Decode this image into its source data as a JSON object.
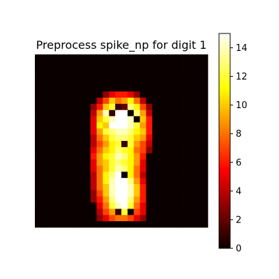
{
  "chart_data": {
    "type": "heatmap",
    "title": "Preprocess spike_np for digit 1",
    "colormap": "hot",
    "vmin": 0,
    "vmax": 15,
    "rows": 28,
    "cols": 28,
    "colorbar": {
      "ticks": [
        0,
        2,
        4,
        6,
        8,
        10,
        12,
        14
      ],
      "tick_labels": [
        "0",
        "2",
        "4",
        "6",
        "8",
        "10",
        "12",
        "14"
      ]
    },
    "grid": [
      [
        0,
        0,
        0,
        0,
        0,
        0,
        0,
        0,
        0,
        0,
        0,
        0,
        0,
        0,
        0,
        0,
        0,
        0,
        0,
        0,
        0,
        0,
        0,
        0,
        0,
        0,
        0,
        0
      ],
      [
        0,
        0,
        0,
        0,
        0,
        0,
        0,
        0,
        0,
        0,
        0,
        0,
        0,
        0,
        0,
        0,
        0,
        0,
        0,
        0,
        0,
        0,
        0,
        0,
        0,
        0,
        0,
        0
      ],
      [
        0,
        0,
        0,
        0,
        0,
        0,
        0,
        0,
        0,
        0,
        0,
        0,
        0,
        0,
        0,
        0,
        0,
        0,
        0,
        0,
        0,
        0,
        0,
        0,
        0,
        0,
        0,
        0
      ],
      [
        0,
        0,
        0,
        0,
        0,
        0,
        0,
        0,
        0,
        0,
        0,
        0,
        0,
        0,
        0,
        0,
        0,
        0,
        0,
        0,
        0,
        0,
        0,
        0,
        0,
        0,
        0,
        0
      ],
      [
        0,
        0,
        0,
        0,
        0,
        0,
        0,
        0,
        0,
        0,
        0,
        0,
        0,
        0,
        0,
        0,
        0,
        0,
        0,
        0,
        0,
        0,
        0,
        0,
        0,
        0,
        0,
        0
      ],
      [
        0,
        0,
        0,
        0,
        0,
        0,
        0,
        0,
        0,
        0,
        0,
        0,
        0,
        0,
        0,
        0,
        0,
        0,
        0,
        0,
        0,
        0,
        0,
        0,
        0,
        0,
        0,
        0
      ],
      [
        0,
        0,
        0,
        0,
        0,
        0,
        0,
        0,
        0,
        0,
        0,
        3,
        5,
        6,
        6,
        5,
        3,
        0,
        0,
        0,
        0,
        0,
        0,
        0,
        0,
        0,
        0,
        0
      ],
      [
        0,
        0,
        0,
        0,
        0,
        0,
        0,
        0,
        0,
        0,
        4,
        7,
        10,
        8,
        9,
        11,
        8,
        4,
        0,
        0,
        0,
        0,
        0,
        0,
        0,
        0,
        0,
        0
      ],
      [
        0,
        0,
        0,
        0,
        0,
        0,
        0,
        0,
        0,
        3,
        6,
        10,
        12,
        1,
        2,
        13,
        11,
        7,
        3,
        0,
        0,
        0,
        0,
        0,
        0,
        0,
        0,
        0
      ],
      [
        0,
        0,
        0,
        0,
        0,
        0,
        0,
        0,
        0,
        4,
        9,
        14,
        1,
        15,
        15,
        0,
        13,
        9,
        4,
        0,
        0,
        0,
        0,
        0,
        0,
        0,
        0,
        0
      ],
      [
        0,
        0,
        0,
        0,
        0,
        0,
        0,
        0,
        0,
        5,
        10,
        12,
        14,
        15,
        15,
        14,
        0,
        10,
        6,
        0,
        0,
        0,
        0,
        0,
        0,
        0,
        0,
        0
      ],
      [
        0,
        0,
        0,
        0,
        0,
        0,
        0,
        0,
        0,
        5,
        11,
        10,
        15,
        15,
        15,
        14,
        12,
        9,
        6,
        0,
        0,
        0,
        0,
        0,
        0,
        0,
        0,
        0
      ],
      [
        0,
        0,
        0,
        0,
        0,
        0,
        0,
        0,
        0,
        5,
        9,
        12,
        13,
        14,
        14,
        13,
        11,
        10,
        6,
        0,
        0,
        0,
        0,
        0,
        0,
        0,
        0,
        0
      ],
      [
        0,
        0,
        0,
        0,
        0,
        0,
        0,
        0,
        0,
        4,
        8,
        10,
        12,
        13,
        13,
        12,
        10,
        9,
        5,
        0,
        0,
        0,
        0,
        0,
        0,
        0,
        0,
        0
      ],
      [
        0,
        0,
        0,
        0,
        0,
        0,
        0,
        0,
        0,
        4,
        7,
        9,
        11,
        12,
        1,
        12,
        9,
        7,
        4,
        0,
        0,
        0,
        0,
        0,
        0,
        0,
        0,
        0
      ],
      [
        0,
        0,
        0,
        0,
        0,
        0,
        0,
        0,
        0,
        5,
        8,
        10,
        11,
        13,
        12,
        11,
        8,
        7,
        3,
        0,
        0,
        0,
        0,
        0,
        0,
        0,
        0,
        0
      ],
      [
        0,
        0,
        0,
        0,
        0,
        0,
        0,
        0,
        0,
        6,
        9,
        11,
        12,
        14,
        13,
        11,
        9,
        6,
        0,
        0,
        0,
        0,
        0,
        0,
        0,
        0,
        0,
        0
      ],
      [
        0,
        0,
        0,
        0,
        0,
        0,
        0,
        0,
        0,
        5,
        9,
        10,
        12,
        13,
        12,
        11,
        9,
        5,
        0,
        0,
        0,
        0,
        0,
        0,
        0,
        0,
        0,
        0
      ],
      [
        0,
        0,
        0,
        0,
        0,
        0,
        0,
        0,
        0,
        5,
        8,
        10,
        12,
        14,
        13,
        11,
        8,
        5,
        0,
        0,
        0,
        0,
        0,
        0,
        0,
        0,
        0,
        0
      ],
      [
        0,
        0,
        0,
        0,
        0,
        0,
        0,
        0,
        0,
        4,
        8,
        11,
        13,
        15,
        0,
        11,
        8,
        4,
        0,
        0,
        0,
        0,
        0,
        0,
        0,
        0,
        0,
        0
      ],
      [
        0,
        0,
        0,
        0,
        0,
        0,
        0,
        0,
        0,
        4,
        8,
        11,
        14,
        15,
        15,
        13,
        9,
        5,
        0,
        0,
        0,
        0,
        0,
        0,
        0,
        0,
        0,
        0
      ],
      [
        0,
        0,
        0,
        0,
        0,
        0,
        0,
        0,
        0,
        4,
        8,
        10,
        14,
        15,
        15,
        14,
        10,
        6,
        0,
        0,
        0,
        0,
        0,
        0,
        0,
        0,
        0,
        0
      ],
      [
        0,
        0,
        0,
        0,
        0,
        0,
        0,
        0,
        0,
        3,
        7,
        10,
        14,
        15,
        15,
        14,
        10,
        6,
        0,
        0,
        0,
        0,
        0,
        0,
        0,
        0,
        0,
        0
      ],
      [
        0,
        0,
        0,
        0,
        0,
        0,
        0,
        0,
        0,
        3,
        6,
        9,
        13,
        15,
        15,
        13,
        9,
        6,
        0,
        0,
        0,
        0,
        0,
        0,
        0,
        0,
        0,
        0
      ],
      [
        0,
        0,
        0,
        0,
        0,
        0,
        0,
        0,
        0,
        0,
        5,
        8,
        12,
        14,
        15,
        12,
        8,
        5,
        0,
        0,
        0,
        0,
        0,
        0,
        0,
        0,
        0,
        0
      ],
      [
        0,
        0,
        0,
        0,
        0,
        0,
        0,
        0,
        0,
        0,
        4,
        7,
        9,
        1,
        12,
        0,
        7,
        5,
        0,
        0,
        0,
        0,
        0,
        0,
        0,
        0,
        0,
        0
      ],
      [
        0,
        0,
        0,
        0,
        0,
        0,
        0,
        0,
        0,
        0,
        3,
        5,
        7,
        8,
        8,
        7,
        5,
        3,
        0,
        0,
        0,
        0,
        0,
        0,
        0,
        0,
        0,
        0
      ],
      [
        0,
        0,
        0,
        0,
        0,
        0,
        0,
        0,
        0,
        0,
        0,
        0,
        0,
        0,
        0,
        0,
        0,
        0,
        0,
        0,
        0,
        0,
        0,
        0,
        0,
        0,
        0,
        0
      ]
    ]
  }
}
